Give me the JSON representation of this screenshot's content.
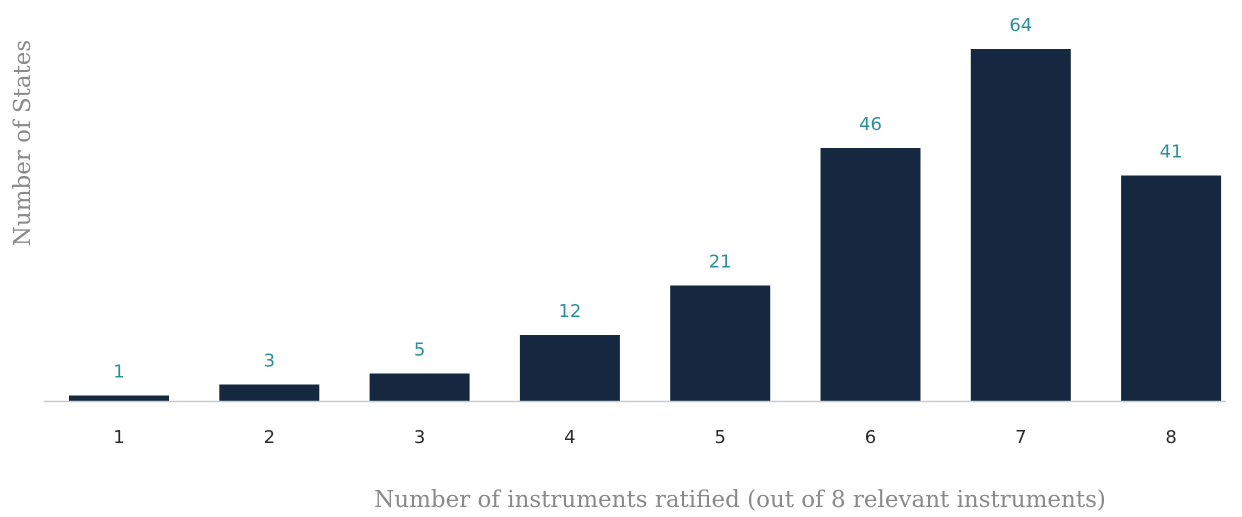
{
  "chart_data": {
    "type": "bar",
    "categories": [
      "1",
      "2",
      "3",
      "4",
      "5",
      "6",
      "7",
      "8"
    ],
    "values": [
      1,
      3,
      5,
      12,
      21,
      46,
      64,
      41
    ],
    "title": "",
    "xlabel": "Number of instruments ratified (out of 8 relevant instruments)",
    "ylabel": "Number of States",
    "ylim": [
      0,
      64
    ],
    "grid": false,
    "data_labels": true,
    "colors": {
      "bar": "#15283f",
      "data_label": "#2a8f9d",
      "axis_line": "#c5cdd6"
    }
  }
}
